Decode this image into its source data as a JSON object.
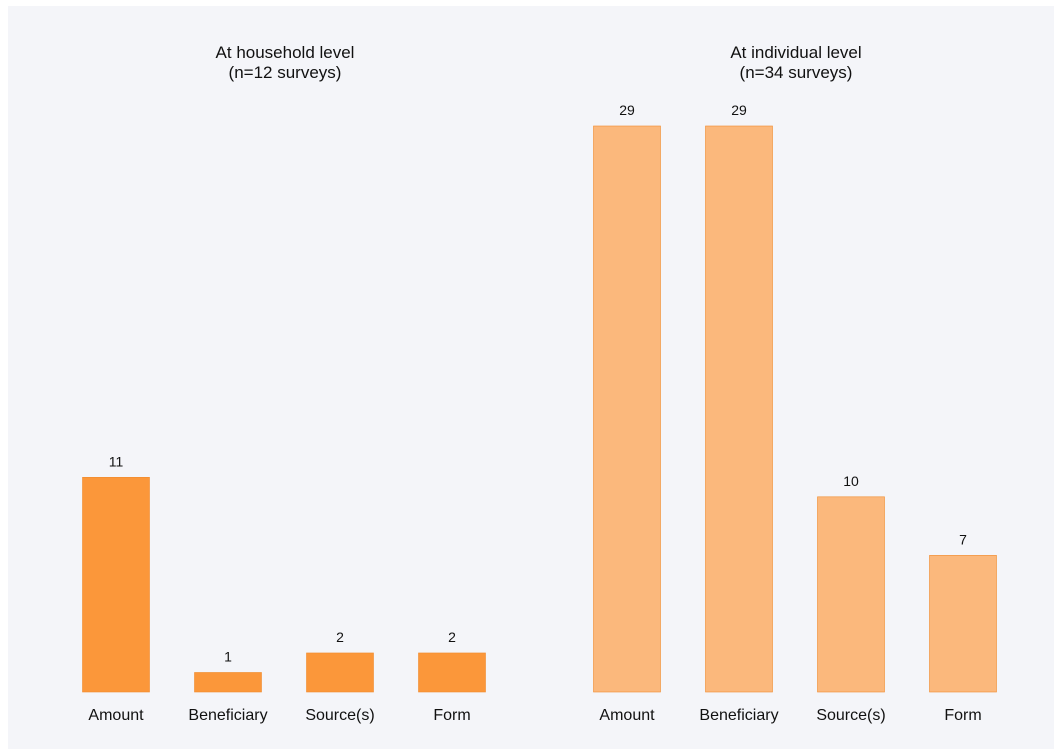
{
  "chart_data": [
    {
      "type": "bar",
      "title": "At household level",
      "subtitle": "(n=12 surveys)",
      "categories": [
        "Amount",
        "Beneficiary",
        "Source(s)",
        "Form"
      ],
      "values": [
        11,
        1,
        2,
        2
      ],
      "ylim": [
        0,
        29
      ],
      "bar_color": "#fb973a",
      "grid": false,
      "show_value_labels": true
    },
    {
      "type": "bar",
      "title": "At individual level",
      "subtitle": "(n=34 surveys)",
      "categories": [
        "Amount",
        "Beneficiary",
        "Source(s)",
        "Form"
      ],
      "values": [
        29,
        29,
        10,
        7
      ],
      "ylim": [
        0,
        29
      ],
      "bar_color": "#fbb87c",
      "grid": false,
      "show_value_labels": true
    }
  ]
}
